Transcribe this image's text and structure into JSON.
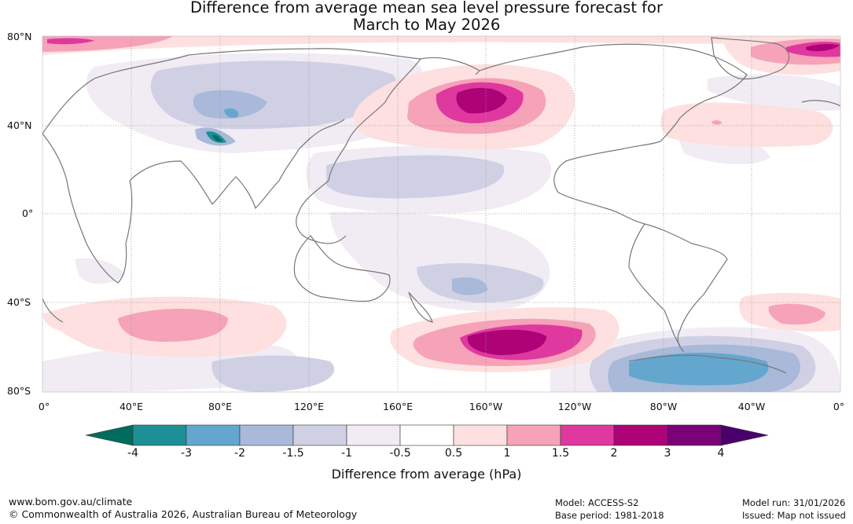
{
  "title": {
    "line1": "Difference from average mean sea level pressure forecast for",
    "line2": "March to May 2026"
  },
  "lat_labels": [
    "80°N",
    "40°N",
    "0°",
    "40°S",
    "80°S"
  ],
  "lon_labels": [
    "0°",
    "40°E",
    "80°E",
    "120°E",
    "160°E",
    "160°W",
    "120°W",
    "80°W",
    "40°W",
    "0°"
  ],
  "colorbar": {
    "ticks": [
      "-4",
      "-3",
      "-2",
      "-1.5",
      "-1",
      "-0.5",
      "0.5",
      "1",
      "1.5",
      "2",
      "3",
      "4"
    ],
    "colors": [
      "#1d8f96",
      "#63a7cf",
      "#a8b9d9",
      "#d0d0e5",
      "#f1ecf4",
      "#ffffff",
      "#fde0df",
      "#f6a2b8",
      "#df389f",
      "#ad0377",
      "#7a0177"
    ],
    "under_color": "#006c5e",
    "over_color": "#4a006a",
    "title": "Difference from average (hPa)"
  },
  "footer": {
    "url": "www.bom.gov.au/climate",
    "copyright": "© Commonwealth of Australia 2026, Australian Bureau of Meteorology",
    "model": "Model: ACCESS-S2",
    "base_period": "Base period: 1981-2018",
    "model_run": "Model run: 31/01/2026",
    "issued": "Issued: Map not issued"
  }
}
